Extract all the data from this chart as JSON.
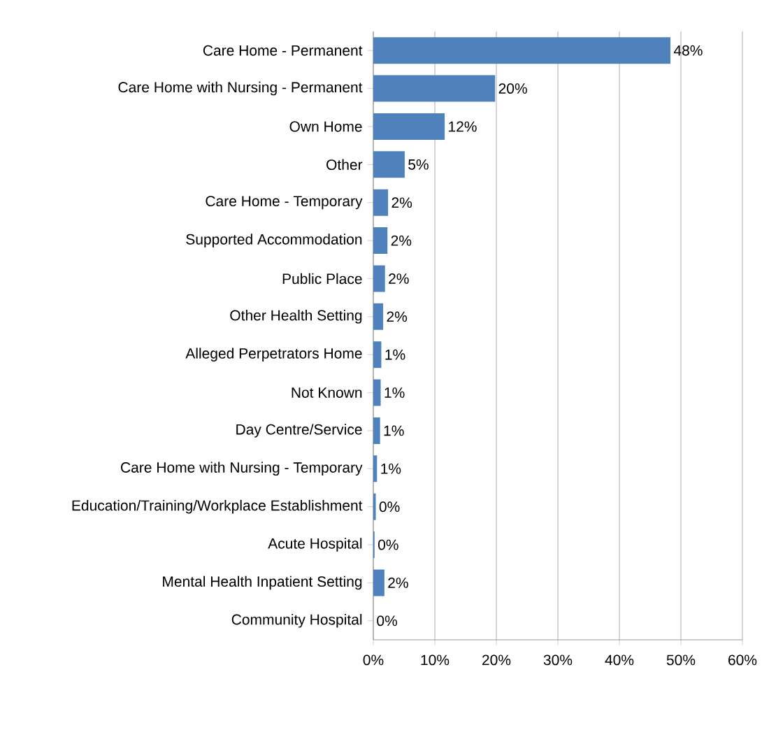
{
  "chart_data": {
    "type": "bar",
    "orientation": "horizontal",
    "categories": [
      "Care Home - Permanent",
      "Care Home with Nursing - Permanent",
      "Own Home",
      "Other",
      "Care Home - Temporary",
      "Supported Accommodation",
      "Public Place",
      "Other Health Setting",
      "Alleged Perpetrators Home",
      "Not Known",
      "Day Centre/Service",
      "Care Home with Nursing - Temporary",
      "Education/Training/Workplace Establishment",
      "Acute Hospital",
      "Mental Health Inpatient Setting",
      "Community Hospital"
    ],
    "values": [
      48.3,
      19.8,
      11.6,
      5.1,
      2.4,
      2.3,
      1.9,
      1.6,
      1.3,
      1.2,
      1.1,
      0.6,
      0.4,
      0.2,
      1.8,
      0
    ],
    "value_labels": [
      "48%",
      "20%",
      "12%",
      "5%",
      "2%",
      "2%",
      "2%",
      "2%",
      "1%",
      "1%",
      "1%",
      "1%",
      "0%",
      "0%",
      "2%",
      "0%"
    ],
    "color": "#4f81bd",
    "xlim": [
      0,
      60
    ],
    "xticks": [
      {
        "value": 0,
        "label": "0%"
      },
      {
        "value": 10,
        "label": "10%"
      },
      {
        "value": 20,
        "label": "20%"
      },
      {
        "value": 30,
        "label": "30%"
      },
      {
        "value": 40,
        "label": "40%"
      },
      {
        "value": 50,
        "label": "50%"
      },
      {
        "value": 60,
        "label": "60%"
      }
    ],
    "grid": "x"
  }
}
